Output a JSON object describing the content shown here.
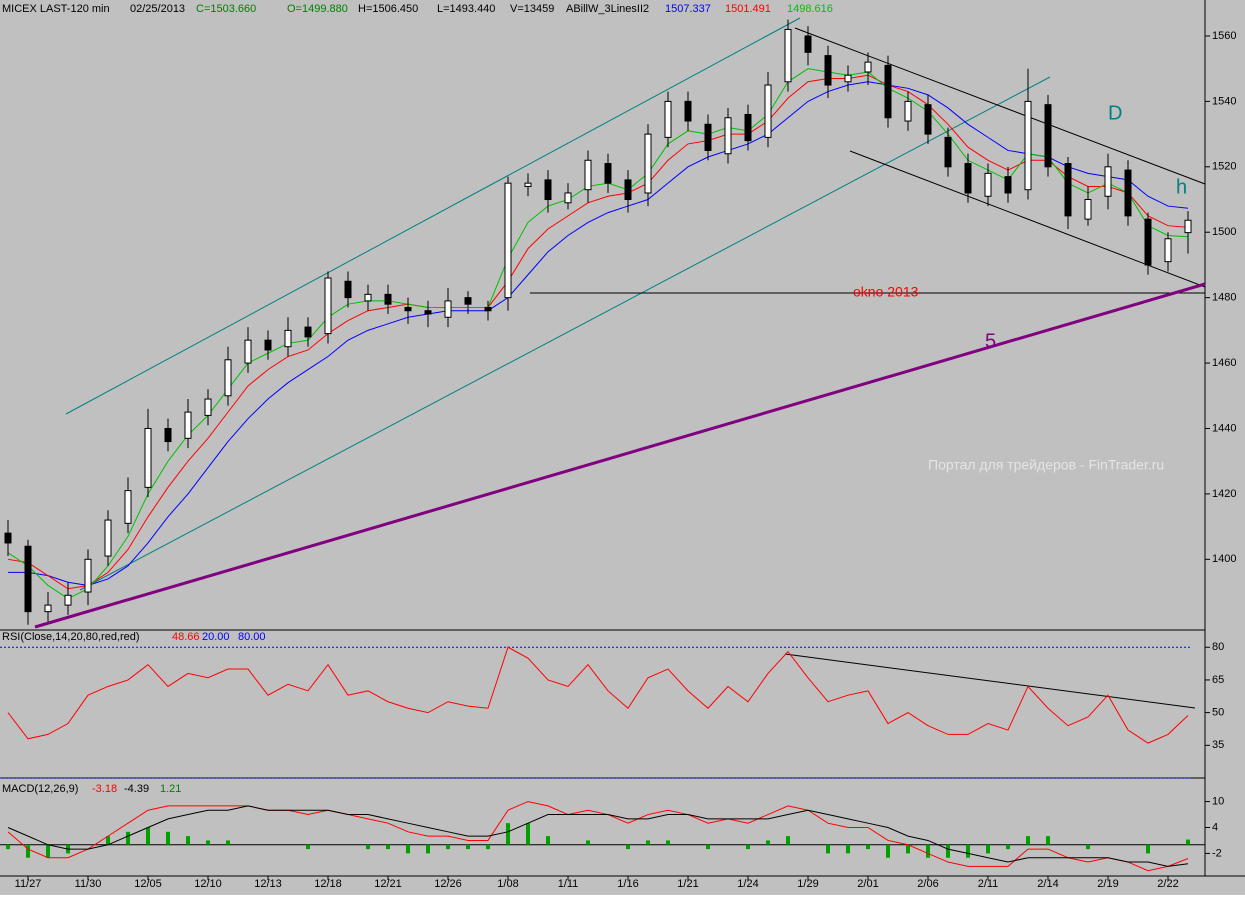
{
  "chart_data": [
    {
      "type": "candlestick",
      "title": "MICEX LAST-120 min",
      "header": [
        "02/25/2013",
        "C=1503.660",
        "O=1499.880",
        "H=1506.450",
        "L=1493.440",
        "V=13459",
        "ABillW_3LinesII2"
      ],
      "categories": [
        null,
        "11/27",
        null,
        null,
        "11/30",
        null,
        null,
        "12/05",
        null,
        null,
        "12/10",
        null,
        null,
        "12/13",
        null,
        null,
        "12/18",
        null,
        null,
        "12/21",
        null,
        null,
        "12/26",
        null,
        null,
        "1/08",
        null,
        null,
        "1/11",
        null,
        null,
        "1/16",
        null,
        null,
        "1/21",
        null,
        null,
        "1/24",
        null,
        null,
        "1/29",
        null,
        null,
        "2/01",
        null,
        null,
        "2/06",
        null,
        null,
        "2/11",
        null,
        null,
        "2/14",
        null,
        null,
        "2/19",
        null,
        null,
        "2/22",
        null
      ],
      "open": [
        1408,
        1404,
        1384,
        1386,
        1390,
        1401,
        1411,
        1422,
        1440,
        1437,
        1444,
        1450,
        1460,
        1467,
        1465,
        1471,
        1469,
        1485,
        1479,
        1481,
        1477,
        1476,
        1474,
        1480,
        1477,
        1480,
        1514,
        1516,
        1509,
        1513,
        1521,
        1516,
        1512,
        1529,
        1540,
        1533,
        1524,
        1536,
        1529,
        1546,
        1560,
        1554,
        1546,
        1549,
        1551,
        1534,
        1539,
        1529,
        1521,
        1511,
        1517,
        1513,
        1539,
        1521,
        1504,
        1511,
        1519,
        1504,
        1491,
        1499.88
      ],
      "high": [
        1412,
        1406,
        1390,
        1393,
        1403,
        1415,
        1425,
        1446,
        1443,
        1449,
        1452,
        1465,
        1471,
        1470,
        1474,
        1474,
        1488,
        1488,
        1484,
        1484,
        1480,
        1479,
        1483,
        1482,
        1479,
        1517,
        1518,
        1519,
        1515,
        1525,
        1524,
        1519,
        1533,
        1543,
        1543,
        1536,
        1538,
        1539,
        1549,
        1565,
        1563,
        1557,
        1551,
        1555,
        1554,
        1543,
        1542,
        1532,
        1524,
        1521,
        1520,
        1550,
        1542,
        1523,
        1514,
        1524,
        1522,
        1506,
        1500,
        1506.45
      ],
      "low": [
        1401,
        1380,
        1381,
        1383,
        1386,
        1398,
        1408,
        1419,
        1433,
        1434,
        1441,
        1447,
        1457,
        1461,
        1462,
        1465,
        1466,
        1477,
        1476,
        1475,
        1472,
        1471,
        1471,
        1475,
        1473,
        1476,
        1511,
        1506,
        1507,
        1509,
        1512,
        1506,
        1508,
        1526,
        1531,
        1522,
        1521,
        1525,
        1526,
        1543,
        1551,
        1541,
        1543,
        1545,
        1532,
        1531,
        1527,
        1517,
        1509,
        1508,
        1509,
        1510,
        1517,
        1501,
        1502,
        1507,
        1502,
        1487,
        1488,
        1493.44
      ],
      "close": [
        1405,
        1384,
        1386,
        1389,
        1400,
        1412,
        1421,
        1440,
        1436,
        1445,
        1449,
        1461,
        1467,
        1464,
        1470,
        1468,
        1486,
        1480,
        1481,
        1478,
        1476,
        1475,
        1479,
        1478,
        1476,
        1515,
        1515,
        1510,
        1512,
        1522,
        1515,
        1510,
        1530,
        1540,
        1534,
        1525,
        1535,
        1528,
        1545,
        1562,
        1555,
        1545,
        1548,
        1552,
        1535,
        1540,
        1530,
        1520,
        1512,
        1518,
        1512,
        1540,
        1520,
        1505,
        1510,
        1520,
        1505,
        1490,
        1498,
        1503.66
      ],
      "series": [
        {
          "color": "#0000ff",
          "values": [
            1396,
            1396,
            1395,
            1393,
            1392,
            1394,
            1398,
            1405,
            1413,
            1420,
            1428,
            1436,
            1443,
            1449,
            1454,
            1458,
            1462,
            1467,
            1470,
            1472,
            1474,
            1475,
            1476,
            1476,
            1476,
            1480,
            1487,
            1494,
            1499,
            1503,
            1506,
            1508,
            1510,
            1515,
            1520,
            1523,
            1525,
            1527,
            1530,
            1535,
            1540,
            1543,
            1545,
            1546,
            1545,
            1544,
            1542,
            1538,
            1533,
            1529,
            1525,
            1524,
            1523,
            1520,
            1518,
            1517,
            1516,
            1511,
            1508,
            1507.337
          ]
        },
        {
          "color": "#ff0000",
          "values": [
            1400,
            1399,
            1395,
            1391,
            1392,
            1396,
            1403,
            1413,
            1422,
            1430,
            1437,
            1445,
            1453,
            1458,
            1462,
            1464,
            1469,
            1473,
            1476,
            1477,
            1478,
            1477,
            1477,
            1477,
            1477,
            1485,
            1495,
            1501,
            1505,
            1509,
            1511,
            1512,
            1515,
            1522,
            1527,
            1528,
            1530,
            1530,
            1534,
            1541,
            1546,
            1547,
            1547,
            1548,
            1545,
            1543,
            1539,
            1533,
            1526,
            1522,
            1519,
            1522,
            1522,
            1517,
            1514,
            1514,
            1512,
            1505,
            1502,
            1501.491
          ]
        },
        {
          "color": "#00c000",
          "values": [
            1402,
            1398,
            1392,
            1388,
            1391,
            1398,
            1407,
            1420,
            1430,
            1438,
            1444,
            1452,
            1460,
            1463,
            1466,
            1467,
            1474,
            1478,
            1479,
            1479,
            1478,
            1477,
            1477,
            1477,
            1477,
            1492,
            1503,
            1508,
            1510,
            1514,
            1515,
            1513,
            1518,
            1527,
            1531,
            1530,
            1532,
            1531,
            1536,
            1546,
            1550,
            1549,
            1548,
            1549,
            1544,
            1541,
            1537,
            1530,
            1522,
            1519,
            1516,
            1524,
            1523,
            1515,
            1512,
            1515,
            1512,
            1502,
            1499,
            1498.616
          ]
        }
      ],
      "ylim": [
        1379,
        1571
      ],
      "yticks": [
        1400,
        1420,
        1440,
        1460,
        1480,
        1500,
        1520,
        1540,
        1560
      ],
      "annotations": [
        "okno 2013",
        "5",
        "D",
        "h"
      ],
      "watermark": "Портал для трейдеров - FinTrader.ru"
    },
    {
      "type": "line",
      "title": "RSI(Close,14,20,80,red,red)",
      "levels": [
        {
          "value": 20,
          "label": "20.00"
        },
        {
          "value": 80,
          "label": "80.00"
        }
      ],
      "series": [
        {
          "color": "#ff0000",
          "values": [
            50,
            38,
            40,
            45,
            58,
            62,
            65,
            72,
            62,
            68,
            66,
            70,
            70,
            58,
            63,
            60,
            72,
            58,
            60,
            55,
            52,
            50,
            55,
            53,
            52,
            80,
            75,
            65,
            62,
            72,
            60,
            52,
            66,
            70,
            60,
            52,
            62,
            55,
            68,
            78,
            66,
            55,
            58,
            60,
            45,
            50,
            44,
            40,
            40,
            45,
            42,
            62,
            52,
            44,
            48,
            58,
            42,
            36,
            40,
            48.66
          ]
        }
      ],
      "ylim": [
        20,
        87
      ],
      "yticks": [
        35,
        50,
        65,
        80
      ]
    },
    {
      "type": "macd",
      "title": "MACD(12,26,9)",
      "series": [
        {
          "color": "#ff0000",
          "values": [
            3,
            -1,
            -3,
            -3,
            -1,
            2,
            5,
            8,
            9,
            9,
            9,
            9,
            9,
            8,
            8,
            7,
            8,
            7,
            6,
            5,
            3,
            2,
            2,
            1,
            1,
            8,
            10,
            9,
            7,
            8,
            7,
            5,
            7,
            8,
            7,
            5,
            6,
            5,
            7,
            9,
            8,
            5,
            4,
            4,
            1,
            0,
            -2,
            -4,
            -5,
            -5,
            -5,
            -1,
            -1,
            -3,
            -4,
            -3,
            -4,
            -6,
            -5,
            -3.18
          ]
        },
        {
          "color": "#000000",
          "values": [
            4,
            2,
            0,
            -1,
            -1,
            0,
            2,
            4,
            6,
            7,
            8,
            8,
            9,
            8,
            8,
            8,
            8,
            7,
            7,
            6,
            5,
            4,
            3,
            2,
            2,
            3,
            5,
            7,
            7,
            7,
            7,
            6,
            6,
            7,
            7,
            6,
            6,
            6,
            6,
            7,
            8,
            7,
            6,
            5,
            4,
            2,
            1,
            -1,
            -2,
            -3,
            -4,
            -3,
            -3,
            -3,
            -3,
            -3,
            -4,
            -4,
            -5,
            -4.39
          ]
        },
        {
          "color": "#00a000",
          "values": [
            -1,
            -3,
            -3,
            -2,
            0,
            2,
            3,
            4,
            3,
            2,
            1,
            1,
            0,
            0,
            0,
            -1,
            0,
            0,
            -1,
            -1,
            -2,
            -2,
            -1,
            -1,
            -1,
            5,
            5,
            2,
            0,
            1,
            0,
            -1,
            1,
            1,
            0,
            -1,
            0,
            -1,
            1,
            2,
            0,
            -2,
            -2,
            -1,
            -3,
            -2,
            -3,
            -3,
            -3,
            -2,
            -1,
            2,
            2,
            0,
            -1,
            0,
            0,
            -2,
            0,
            1.21
          ]
        }
      ],
      "ylim": [
        -7,
        15
      ],
      "yticks": [
        -2,
        4,
        10
      ]
    }
  ]
}
